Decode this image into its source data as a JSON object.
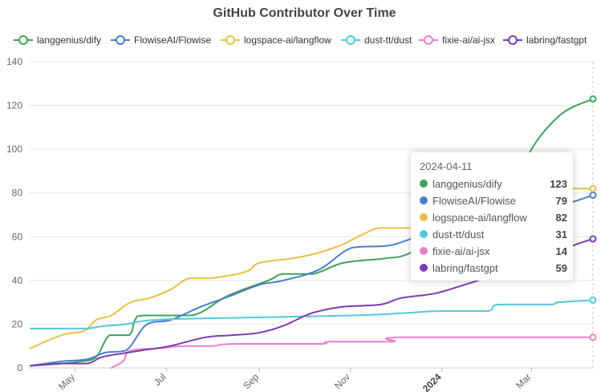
{
  "chart_data": {
    "type": "line",
    "title": "GitHub Contributor Over Time",
    "xlabel": "",
    "ylabel": "",
    "ylim": [
      0,
      140
    ],
    "yticks": [
      "0",
      "20",
      "40",
      "60",
      "80",
      "100",
      "120",
      "140"
    ],
    "xlim": [
      "2023-03-31",
      "2024-04-11"
    ],
    "xticks": [
      {
        "date": "2023-05-01",
        "label": "May",
        "bold": false
      },
      {
        "date": "2023-07-01",
        "label": "Jul",
        "bold": false
      },
      {
        "date": "2023-09-01",
        "label": "Sep",
        "bold": false
      },
      {
        "date": "2023-11-01",
        "label": "Nov",
        "bold": false
      },
      {
        "date": "2024-01-01",
        "label": "2024",
        "bold": true
      },
      {
        "date": "2024-03-01",
        "label": "Mar",
        "bold": false
      }
    ],
    "grid": true,
    "legend_position": "top",
    "series": [
      {
        "name": "langgenius/dify",
        "color": "#3ea35a",
        "points": [
          [
            "2023-04-01",
            1
          ],
          [
            "2023-04-22",
            2
          ],
          [
            "2023-05-05",
            3
          ],
          [
            "2023-05-15",
            5
          ],
          [
            "2023-05-24",
            15
          ],
          [
            "2023-06-06",
            15
          ],
          [
            "2023-06-10",
            22
          ],
          [
            "2023-06-16",
            24
          ],
          [
            "2023-07-18",
            24
          ],
          [
            "2023-08-11",
            33
          ],
          [
            "2023-09-07",
            40
          ],
          [
            "2023-09-17",
            43
          ],
          [
            "2023-10-07",
            43
          ],
          [
            "2023-10-27",
            48
          ],
          [
            "2023-11-23",
            50
          ],
          [
            "2023-12-09",
            52
          ],
          [
            "2023-12-27",
            60
          ],
          [
            "2024-01-16",
            62
          ],
          [
            "2024-02-12",
            65
          ],
          [
            "2024-02-26",
            95
          ],
          [
            "2024-03-19",
            115
          ],
          [
            "2024-04-11",
            123
          ]
        ]
      },
      {
        "name": "FlowiseAI/Flowise",
        "color": "#4a7dd0",
        "points": [
          [
            "2023-04-01",
            1
          ],
          [
            "2023-04-22",
            3
          ],
          [
            "2023-05-09",
            4
          ],
          [
            "2023-05-21",
            7
          ],
          [
            "2023-06-04",
            8
          ],
          [
            "2023-06-18",
            20
          ],
          [
            "2023-07-04",
            22
          ],
          [
            "2023-07-24",
            28
          ],
          [
            "2023-08-13",
            33
          ],
          [
            "2023-09-01",
            38
          ],
          [
            "2023-09-17",
            40
          ],
          [
            "2023-10-11",
            45
          ],
          [
            "2023-11-02",
            55
          ],
          [
            "2023-11-27",
            56
          ],
          [
            "2023-12-17",
            60
          ],
          [
            "2024-01-16",
            63
          ],
          [
            "2024-02-12",
            67
          ],
          [
            "2024-03-09",
            72
          ],
          [
            "2024-03-29",
            76
          ],
          [
            "2024-04-11",
            79
          ]
        ]
      },
      {
        "name": "logspace-ai/langflow",
        "color": "#e8c045",
        "points": [
          [
            "2023-04-01",
            9
          ],
          [
            "2023-04-22",
            15
          ],
          [
            "2023-05-07",
            17
          ],
          [
            "2023-05-15",
            22
          ],
          [
            "2023-05-25",
            24
          ],
          [
            "2023-06-07",
            30
          ],
          [
            "2023-06-20",
            32
          ],
          [
            "2023-07-04",
            36
          ],
          [
            "2023-07-16",
            41
          ],
          [
            "2023-07-31",
            41
          ],
          [
            "2023-08-23",
            44
          ],
          [
            "2023-09-01",
            48
          ],
          [
            "2023-09-22",
            50
          ],
          [
            "2023-10-07",
            52
          ],
          [
            "2023-10-25",
            56
          ],
          [
            "2023-11-09",
            61
          ],
          [
            "2023-11-21",
            64
          ],
          [
            "2023-12-13",
            64
          ],
          [
            "2023-12-29",
            65
          ],
          [
            "2024-01-16",
            67
          ],
          [
            "2024-02-12",
            70
          ],
          [
            "2024-03-09",
            74
          ],
          [
            "2024-03-29",
            82
          ],
          [
            "2024-04-11",
            82
          ]
        ]
      },
      {
        "name": "dust-tt/dust",
        "color": "#52c8dc",
        "points": [
          [
            "2023-04-01",
            18
          ],
          [
            "2023-05-07",
            18
          ],
          [
            "2023-05-18",
            19
          ],
          [
            "2023-06-04",
            20
          ],
          [
            "2023-06-24",
            22
          ],
          [
            "2023-08-21",
            23
          ],
          [
            "2023-11-02",
            24
          ],
          [
            "2023-12-05",
            25
          ],
          [
            "2023-12-29",
            26
          ],
          [
            "2024-01-31",
            26
          ],
          [
            "2024-02-08",
            29
          ],
          [
            "2024-03-13",
            29
          ],
          [
            "2024-03-19",
            30
          ],
          [
            "2024-04-11",
            31
          ]
        ]
      },
      {
        "name": "fixie-ai/ai-jsx",
        "color": "#ee7fcc",
        "points": [
          [
            "2023-05-25",
            0
          ],
          [
            "2023-06-02",
            3
          ],
          [
            "2023-06-07",
            8
          ],
          [
            "2023-06-28",
            9
          ],
          [
            "2023-07-11",
            10
          ],
          [
            "2023-07-31",
            10
          ],
          [
            "2023-08-15",
            11
          ],
          [
            "2023-10-11",
            11
          ],
          [
            "2023-10-18",
            12
          ],
          [
            "2023-11-29",
            12
          ],
          [
            "2023-12-05",
            14
          ],
          [
            "2024-04-11",
            14
          ]
        ]
      },
      {
        "name": "labring/fastgpt",
        "color": "#7a3db0",
        "points": [
          [
            "2023-04-01",
            1
          ],
          [
            "2023-04-22",
            2
          ],
          [
            "2023-05-09",
            2
          ],
          [
            "2023-05-19",
            5
          ],
          [
            "2023-06-05",
            7
          ],
          [
            "2023-06-14",
            8
          ],
          [
            "2023-07-03",
            10
          ],
          [
            "2023-07-27",
            14
          ],
          [
            "2023-08-14",
            15
          ],
          [
            "2023-08-31",
            16
          ],
          [
            "2023-09-16",
            19
          ],
          [
            "2023-10-02",
            24
          ],
          [
            "2023-10-11",
            26
          ],
          [
            "2023-10-27",
            28
          ],
          [
            "2023-11-21",
            29
          ],
          [
            "2023-12-05",
            32
          ],
          [
            "2023-12-27",
            34
          ],
          [
            "2024-01-16",
            38
          ],
          [
            "2024-02-12",
            44
          ],
          [
            "2024-03-09",
            50
          ],
          [
            "2024-03-29",
            56
          ],
          [
            "2024-04-11",
            59
          ]
        ]
      }
    ],
    "tooltip": {
      "date": "2024-04-11",
      "rows": [
        {
          "name": "langgenius/dify",
          "value": "123",
          "color": "#3ea35a"
        },
        {
          "name": "FlowiseAI/Flowise",
          "value": "79",
          "color": "#4a7dd0"
        },
        {
          "name": "logspace-ai/langflow",
          "value": "82",
          "color": "#e8c045"
        },
        {
          "name": "dust-tt/dust",
          "value": "31",
          "color": "#52c8dc"
        },
        {
          "name": "fixie-ai/ai-jsx",
          "value": "14",
          "color": "#ee7fcc"
        },
        {
          "name": "labring/fastgpt",
          "value": "59",
          "color": "#7a3db0"
        }
      ]
    }
  }
}
